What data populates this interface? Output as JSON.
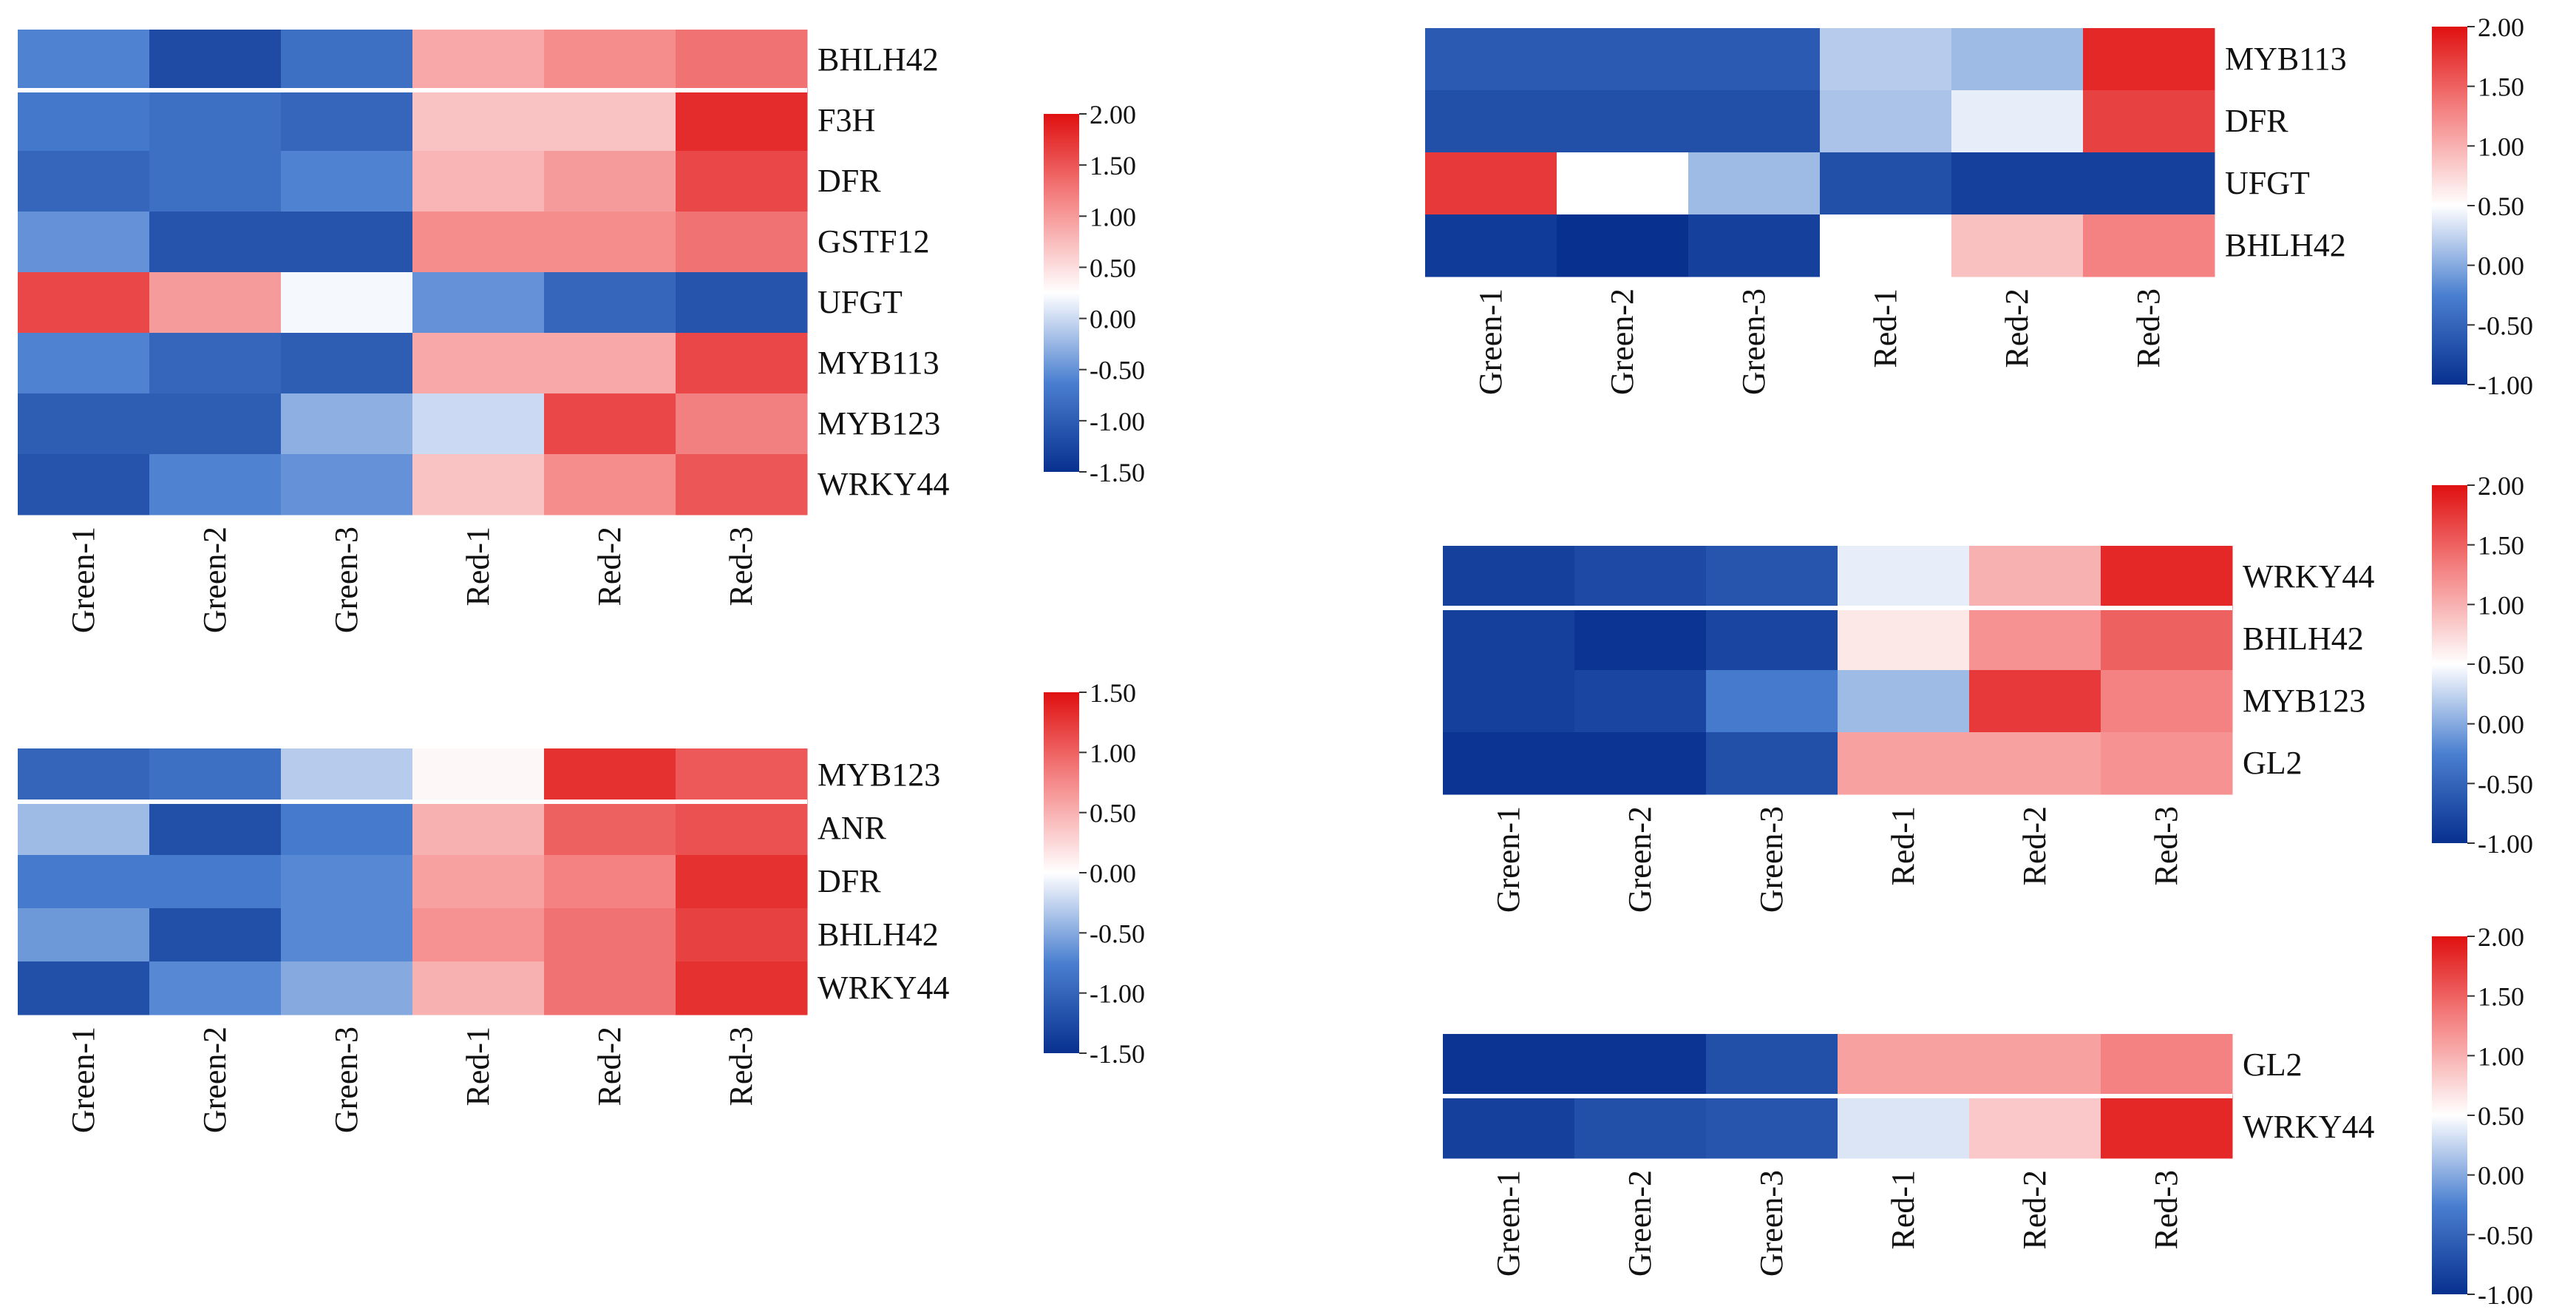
{
  "chart_data": [
    {
      "type": "heatmap",
      "name": "panel-a",
      "columns": [
        "Green-1",
        "Green-2",
        "Green-3",
        "Red-1",
        "Red-2",
        "Red-3"
      ],
      "rows": [
        "BHLH42",
        "F3H",
        "DFR",
        "GSTF12",
        "UFGT",
        "MYB113",
        "MYB123",
        "WRKY44"
      ],
      "values": [
        [
          -0.6,
          -1.2,
          -0.8,
          0.9,
          1.1,
          1.3
        ],
        [
          -0.7,
          -0.8,
          -0.9,
          0.7,
          0.7,
          1.8
        ],
        [
          -0.9,
          -0.8,
          -0.6,
          0.8,
          1.0,
          1.6
        ],
        [
          -0.5,
          -1.1,
          -1.1,
          1.1,
          1.1,
          1.3
        ],
        [
          1.6,
          1.0,
          0.2,
          -0.5,
          -0.9,
          -1.1
        ],
        [
          -0.6,
          -0.9,
          -1.0,
          0.9,
          0.9,
          1.6
        ],
        [
          -1.0,
          -1.0,
          -0.3,
          0.0,
          1.6,
          1.2
        ],
        [
          -1.1,
          -0.6,
          -0.5,
          0.7,
          1.1,
          1.5
        ]
      ],
      "scale": {
        "ticks": [
          "2.00",
          "1.50",
          "1.00",
          "0.50",
          "0.00",
          "-0.50",
          "-1.00",
          "-1.50"
        ],
        "range": [
          -1.5,
          2.0
        ]
      },
      "separator_after_row": 0
    },
    {
      "type": "heatmap",
      "name": "panel-b",
      "columns": [
        "Green-1",
        "Green-2",
        "Green-3",
        "Red-1",
        "Red-2",
        "Red-3"
      ],
      "rows": [
        "MYB113",
        "DFR",
        "UFGT",
        "BHLH42"
      ],
      "values": [
        [
          -0.6,
          -0.6,
          -0.6,
          0.2,
          0.1,
          1.85
        ],
        [
          -0.7,
          -0.7,
          -0.7,
          0.15,
          0.4,
          1.7
        ],
        [
          1.75,
          0.5,
          0.1,
          -0.7,
          -0.85,
          -0.85
        ],
        [
          -0.9,
          -1.0,
          -0.85,
          0.5,
          0.9,
          1.3
        ]
      ],
      "scale": {
        "ticks": [
          "2.00",
          "1.50",
          "1.00",
          "0.50",
          "0.00",
          "-0.50",
          "-1.00"
        ],
        "range": [
          -1.0,
          2.0
        ]
      },
      "separator_after_row": null
    },
    {
      "type": "heatmap",
      "name": "panel-c",
      "columns": [
        "Green-1",
        "Green-2",
        "Green-3",
        "Red-1",
        "Red-2",
        "Red-3"
      ],
      "rows": [
        "MYB123",
        "ANR",
        "DFR",
        "BHLH42",
        "WRKY44"
      ],
      "values": [
        [
          -1.0,
          -0.9,
          -0.3,
          0.05,
          1.3,
          1.05
        ],
        [
          -0.4,
          -1.2,
          -0.8,
          0.5,
          1.0,
          1.1
        ],
        [
          -0.8,
          -0.8,
          -0.7,
          0.6,
          0.8,
          1.3
        ],
        [
          -0.6,
          -1.2,
          -0.7,
          0.7,
          0.9,
          1.2
        ],
        [
          -1.2,
          -0.7,
          -0.5,
          0.5,
          0.9,
          1.3
        ]
      ],
      "scale": {
        "ticks": [
          "1.50",
          "1.00",
          "0.50",
          "0.00",
          "-0.50",
          "-1.00",
          "-1.50"
        ],
        "range": [
          -1.5,
          1.5
        ]
      },
      "separator_after_row": 0
    },
    {
      "type": "heatmap",
      "name": "panel-d",
      "columns": [
        "Green-1",
        "Green-2",
        "Green-3",
        "Red-1",
        "Red-2",
        "Red-3"
      ],
      "rows": [
        "WRKY44",
        "BHLH42",
        "MYB123",
        "GL2"
      ],
      "values": [
        [
          -0.85,
          -0.75,
          -0.65,
          0.4,
          1.0,
          1.85
        ],
        [
          -0.85,
          -0.95,
          -0.8,
          0.65,
          1.2,
          1.5
        ],
        [
          -0.85,
          -0.8,
          -0.3,
          0.1,
          1.75,
          1.3
        ],
        [
          -0.95,
          -0.95,
          -0.7,
          1.1,
          1.1,
          1.2
        ]
      ],
      "scale": {
        "ticks": [
          "2.00",
          "1.50",
          "1.00",
          "0.50",
          "0.00",
          "-0.50",
          "-1.00"
        ],
        "range": [
          -1.0,
          2.0
        ]
      },
      "separator_after_row": 0
    },
    {
      "type": "heatmap",
      "name": "panel-e",
      "columns": [
        "Green-1",
        "Green-2",
        "Green-3",
        "Red-1",
        "Red-2",
        "Red-3"
      ],
      "rows": [
        "GL2",
        "WRKY44"
      ],
      "values": [
        [
          -0.95,
          -0.95,
          -0.7,
          1.1,
          1.1,
          1.3
        ],
        [
          -0.85,
          -0.7,
          -0.65,
          0.35,
          0.85,
          1.85
        ]
      ],
      "scale": {
        "ticks": [
          "2.00",
          "1.50",
          "1.00",
          "0.50",
          "0.00",
          "-0.50",
          "-1.00"
        ],
        "range": [
          -1.0,
          2.0
        ]
      },
      "separator_after_row": 0
    }
  ],
  "colors": {
    "low": "#08308f",
    "mid_low": "#4a7fd0",
    "mid": "#ffffff",
    "mid_high": "#f58a8a",
    "high": "#e01010",
    "separator": "#ffffff"
  }
}
